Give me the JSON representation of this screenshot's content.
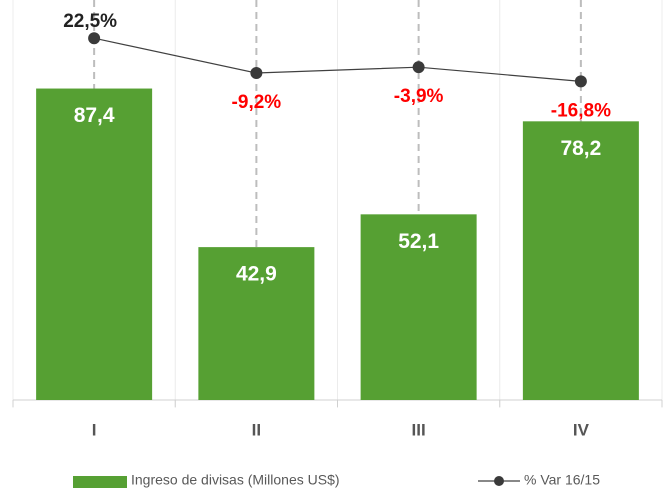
{
  "chart_data": {
    "type": "bar-line",
    "categories": [
      "I",
      "II",
      "III",
      "IV"
    ],
    "ylim": [
      0,
      110
    ],
    "y2lim": [
      -307,
      50
    ],
    "series": [
      {
        "name": "Ingreso de divisas (Millones US$)",
        "type": "bar",
        "color": "#56a033",
        "label_color": "#ffffff",
        "values": [
          87.4,
          42.9,
          52.1,
          78.2
        ],
        "value_labels": [
          "87,4",
          "42,9",
          "52,1",
          "78,2"
        ]
      },
      {
        "name": "% Var 16/15",
        "type": "line",
        "axis": "y2",
        "color": "#404040",
        "values": [
          22.5,
          -9.2,
          -3.9,
          -16.8
        ],
        "value_labels": [
          "22,5%",
          "-9,2%",
          "-3,9%",
          "-16,8%"
        ],
        "label_colors": [
          "#222222",
          "#ff0000",
          "#ff0000",
          "#ff0000"
        ]
      }
    ]
  }
}
